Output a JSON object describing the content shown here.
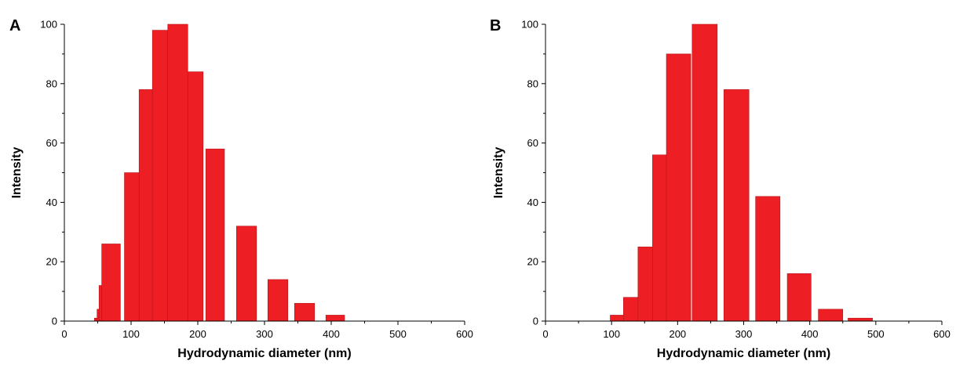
{
  "colors": {
    "bar_fill": "#ee1f24",
    "bar_stroke": "#b3161a",
    "axis": "#000000"
  },
  "chart_data": [
    {
      "type": "bar",
      "panel_label": "A",
      "xlabel": "Hydrodynamic diameter (nm)",
      "ylabel": "Intensity",
      "xlim": [
        0,
        600
      ],
      "ylim": [
        0,
        100
      ],
      "xticks": [
        0,
        100,
        200,
        300,
        400,
        500,
        600
      ],
      "yticks": [
        0,
        20,
        40,
        60,
        80,
        100
      ],
      "grid": false,
      "bars": [
        {
          "x0": 45,
          "x1": 49,
          "value": 1
        },
        {
          "x0": 49,
          "x1": 52,
          "value": 4
        },
        {
          "x0": 52,
          "x1": 56,
          "value": 12
        },
        {
          "x0": 56,
          "x1": 84,
          "value": 26
        },
        {
          "x0": 90,
          "x1": 112,
          "value": 50
        },
        {
          "x0": 112,
          "x1": 132,
          "value": 78
        },
        {
          "x0": 132,
          "x1": 155,
          "value": 98
        },
        {
          "x0": 155,
          "x1": 185,
          "value": 100
        },
        {
          "x0": 185,
          "x1": 208,
          "value": 84
        },
        {
          "x0": 212,
          "x1": 240,
          "value": 58
        },
        {
          "x0": 258,
          "x1": 288,
          "value": 32
        },
        {
          "x0": 305,
          "x1": 335,
          "value": 14
        },
        {
          "x0": 345,
          "x1": 375,
          "value": 6
        },
        {
          "x0": 392,
          "x1": 420,
          "value": 2
        }
      ]
    },
    {
      "type": "bar",
      "panel_label": "B",
      "xlabel": "Hydrodynamic diameter (nm)",
      "ylabel": "Intensity",
      "xlim": [
        0,
        600
      ],
      "ylim": [
        0,
        100
      ],
      "xticks": [
        0,
        100,
        200,
        300,
        400,
        500,
        600
      ],
      "yticks": [
        0,
        20,
        40,
        60,
        80,
        100
      ],
      "grid": false,
      "bars": [
        {
          "x0": 98,
          "x1": 118,
          "value": 2
        },
        {
          "x0": 118,
          "x1": 140,
          "value": 8
        },
        {
          "x0": 140,
          "x1": 162,
          "value": 25
        },
        {
          "x0": 162,
          "x1": 183,
          "value": 56
        },
        {
          "x0": 183,
          "x1": 220,
          "value": 90
        },
        {
          "x0": 222,
          "x1": 260,
          "value": 100
        },
        {
          "x0": 270,
          "x1": 308,
          "value": 78
        },
        {
          "x0": 318,
          "x1": 355,
          "value": 42
        },
        {
          "x0": 366,
          "x1": 402,
          "value": 16
        },
        {
          "x0": 413,
          "x1": 450,
          "value": 4
        },
        {
          "x0": 458,
          "x1": 495,
          "value": 1
        }
      ]
    }
  ]
}
